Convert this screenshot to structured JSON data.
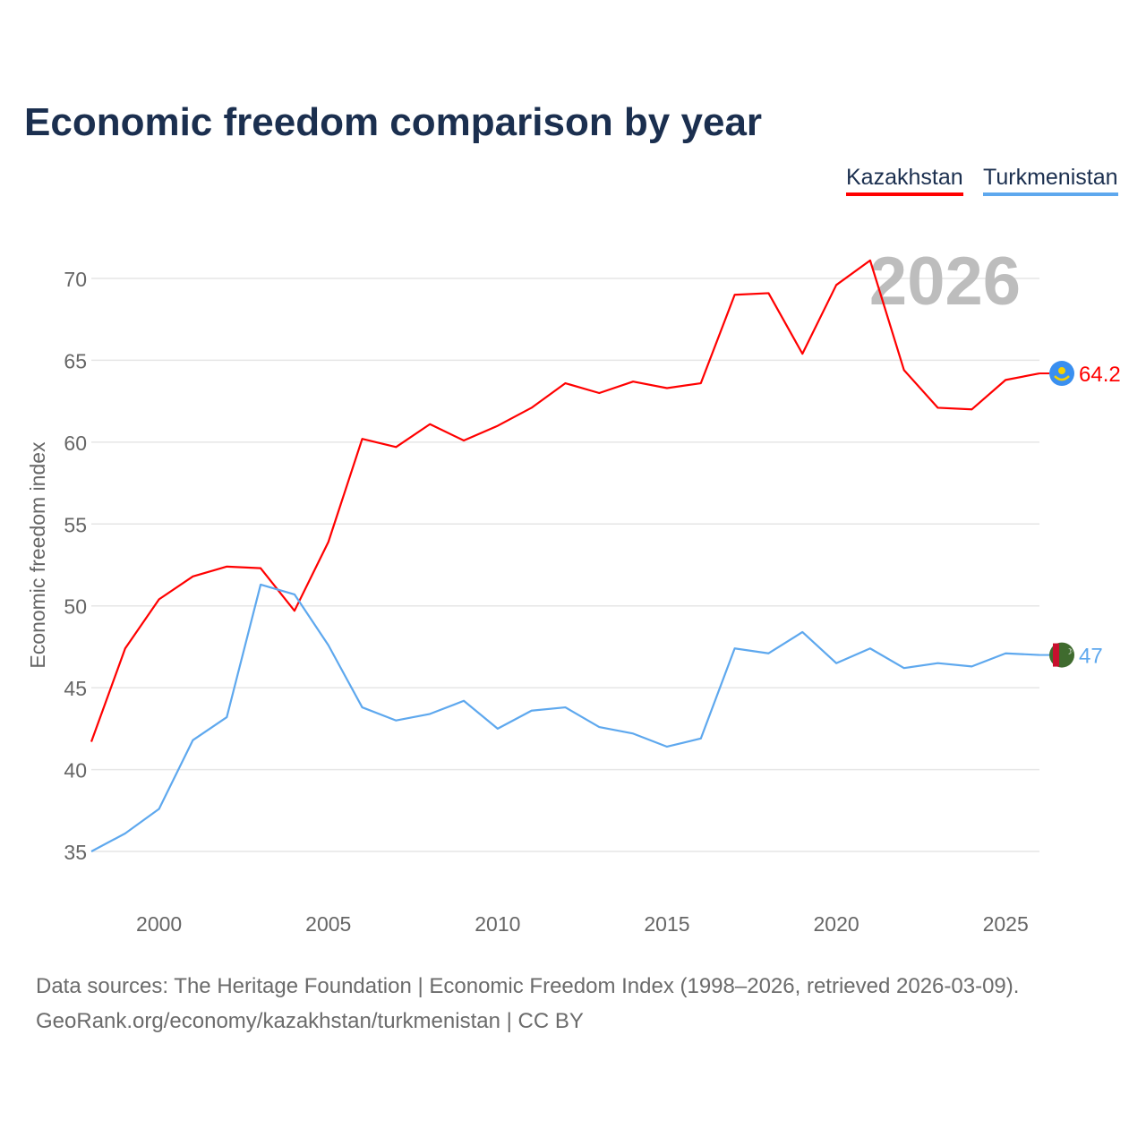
{
  "chart_data": {
    "type": "line",
    "title": "Economic freedom comparison by year",
    "ylabel": "Economic freedom index",
    "xlabel": "",
    "ylim": [
      35,
      70
    ],
    "xlim": [
      1998,
      2026
    ],
    "yticks": [
      35,
      40,
      45,
      50,
      55,
      60,
      65,
      70
    ],
    "xticks": [
      2000,
      2005,
      2010,
      2015,
      2020,
      2025
    ],
    "grid": true,
    "legend_position": "top-right",
    "year_watermark": "2026",
    "x": [
      1998,
      1999,
      2000,
      2001,
      2002,
      2003,
      2004,
      2005,
      2006,
      2007,
      2008,
      2009,
      2010,
      2011,
      2012,
      2013,
      2014,
      2015,
      2016,
      2017,
      2018,
      2019,
      2020,
      2021,
      2022,
      2023,
      2024,
      2025,
      2026
    ],
    "series": [
      {
        "name": "Kazakhstan",
        "color": "#ff0000",
        "end_label": "64.2",
        "flag": "kazakhstan-flag",
        "values": [
          41.7,
          47.4,
          50.4,
          51.8,
          52.4,
          52.3,
          49.7,
          53.9,
          60.2,
          59.7,
          61.1,
          60.1,
          61.0,
          62.1,
          63.6,
          63.0,
          63.7,
          63.3,
          63.6,
          69.0,
          69.1,
          65.4,
          69.6,
          71.1,
          64.4,
          62.1,
          62.0,
          63.8,
          64.2
        ]
      },
      {
        "name": "Turkmenistan",
        "color": "#5ea8ee",
        "end_label": "47",
        "flag": "turkmenistan-flag",
        "values": [
          35.0,
          36.1,
          37.6,
          41.8,
          43.2,
          51.3,
          50.7,
          47.6,
          43.8,
          43.0,
          43.4,
          44.2,
          42.5,
          43.6,
          43.8,
          42.6,
          42.2,
          41.4,
          41.9,
          47.4,
          47.1,
          48.4,
          46.5,
          47.4,
          46.2,
          46.5,
          46.3,
          47.1,
          47.0
        ]
      }
    ]
  },
  "footer": {
    "sources": "Data sources: The Heritage Foundation | Economic Freedom Index (1998–2026, retrieved 2026-03-09).",
    "license": "GeoRank.org/economy/kazakhstan/turkmenistan | CC BY"
  }
}
